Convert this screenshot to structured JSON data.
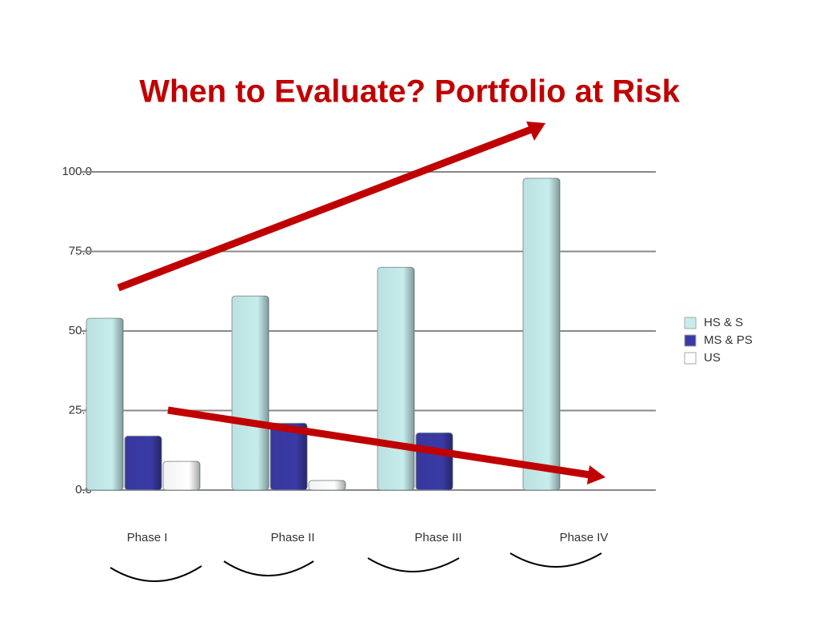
{
  "chart_data": {
    "type": "bar",
    "title": "When to Evaluate?  Portfolio at Risk",
    "categories": [
      "Phase I",
      "Phase II",
      "Phase III",
      "Phase IV"
    ],
    "series": [
      {
        "name": "HS & S",
        "color": "#c6ecec",
        "values": [
          54,
          61,
          70,
          98
        ]
      },
      {
        "name": "MS & PS",
        "color": "#3a3aa6",
        "values": [
          17,
          21,
          18,
          null
        ]
      },
      {
        "name": "US",
        "color": "#ffffff",
        "values": [
          9,
          3,
          null,
          null
        ]
      }
    ],
    "ylim": [
      0,
      100
    ],
    "yticks": [
      {
        "value": 0,
        "label": "0.0"
      },
      {
        "value": 25,
        "label": "25.0"
      },
      {
        "value": 50,
        "label": "50.0"
      },
      {
        "value": 75,
        "label": "75.0"
      },
      {
        "value": 100,
        "label": "100.0"
      }
    ],
    "grid": true
  }
}
